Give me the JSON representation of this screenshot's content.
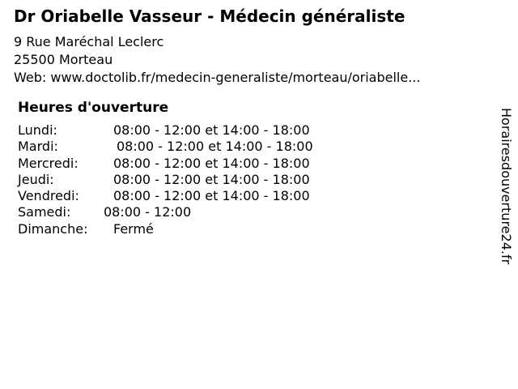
{
  "header": {
    "title": "Dr Oriabelle Vasseur - Médecin généraliste",
    "address_line1": "9 Rue Maréchal Leclerc",
    "address_line2": "25500 Morteau",
    "web_line": "Web: www.doctolib.fr/medecin-generaliste/morteau/oriabelle..."
  },
  "opening_hours": {
    "heading": "Heures d'ouverture",
    "rows": [
      {
        "day": "Lundi:",
        "hours": "08:00 - 12:00 et 14:00 - 18:00"
      },
      {
        "day": "Mardi:",
        "hours": "08:00 - 12:00 et 14:00 - 18:00"
      },
      {
        "day": "Mercredi:",
        "hours": "08:00 - 12:00 et 14:00 - 18:00"
      },
      {
        "day": "Jeudi:",
        "hours": "08:00 - 12:00 et 14:00 - 18:00"
      },
      {
        "day": "Vendredi:",
        "hours": "08:00 - 12:00 et 14:00 - 18:00"
      },
      {
        "day": "Samedi:",
        "hours": "08:00 - 12:00"
      },
      {
        "day": "Dimanche:",
        "hours": "Fermé"
      }
    ]
  },
  "watermark": {
    "text": "Horairesdouverture24.fr"
  },
  "colors": {
    "background": "#ffffff",
    "text": "#000000"
  }
}
